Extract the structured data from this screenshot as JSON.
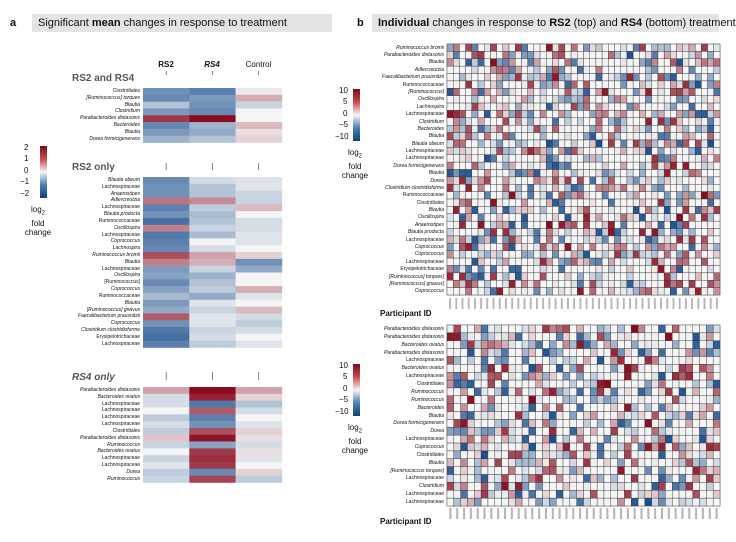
{
  "panel_a": {
    "letter": "a",
    "title_pre": "Significant ",
    "title_bold": "mean",
    "title_post": " changes in response to treatment",
    "columns": [
      "RS2",
      "RS4",
      "Control"
    ],
    "legend": {
      "ticks": [
        "2",
        "1",
        "0",
        "−1",
        "−2"
      ],
      "title_line1": "log",
      "title_sub": "2",
      "title_line2": "fold",
      "title_line3": "change"
    },
    "sections": [
      {
        "title": "RS2 and RS4",
        "rows": [
          {
            "label": "Clostridiales",
            "v": [
              -1.2,
              -1.4,
              0.1
            ]
          },
          {
            "label": "[Ruminococcus] torques",
            "v": [
              -1.3,
              -1.1,
              0.6
            ]
          },
          {
            "label": "Blautia",
            "v": [
              -0.6,
              -1.2,
              -0.4
            ]
          },
          {
            "label": "Clostridium",
            "v": [
              -1.1,
              -1.3,
              0.0
            ]
          },
          {
            "label": "Parabacteroides distasonis",
            "v": [
              1.6,
              2.0,
              0.0
            ]
          },
          {
            "label": "Bacteroides",
            "v": [
              -1.3,
              -0.8,
              0.5
            ]
          },
          {
            "label": "Blautia",
            "v": [
              -1.1,
              -0.9,
              0.2
            ]
          },
          {
            "label": "Dorea formicigenerans",
            "v": [
              -0.8,
              -0.6,
              0.3
            ]
          }
        ]
      },
      {
        "title": "RS2 only",
        "rows": [
          {
            "label": "Blautia obeum",
            "v": [
              -1.3,
              -0.3,
              -0.2
            ]
          },
          {
            "label": "Lachnospiraceae",
            "v": [
              -1.2,
              -0.6,
              -0.2
            ]
          },
          {
            "label": "Anaerostipes",
            "v": [
              -1.2,
              -0.6,
              -0.4
            ]
          },
          {
            "label": "Adlercreutzia",
            "v": [
              1.1,
              0.9,
              -0.4
            ]
          },
          {
            "label": "Lachnospiraceae",
            "v": [
              -1.4,
              -0.5,
              0.5
            ]
          },
          {
            "label": "Blautia producta",
            "v": [
              -1.2,
              -0.7,
              0.0
            ]
          },
          {
            "label": "Ruminococcaceae",
            "v": [
              -1.6,
              -0.6,
              -0.3
            ]
          },
          {
            "label": "Oscillospira",
            "v": [
              1.0,
              -0.4,
              -0.3
            ]
          },
          {
            "label": "Lachnospiraceae",
            "v": [
              -1.5,
              -0.7,
              -0.2
            ]
          },
          {
            "label": "Coprococcus",
            "v": [
              -1.4,
              0.0,
              -0.2
            ]
          },
          {
            "label": "Lachnospira",
            "v": [
              -1.3,
              -0.3,
              0.0
            ]
          },
          {
            "label": "Ruminococcus bromii",
            "v": [
              1.4,
              0.7,
              0.3
            ]
          },
          {
            "label": "Blautia",
            "v": [
              1.0,
              0.6,
              -1.2
            ]
          },
          {
            "label": "Lachnospiraceae",
            "v": [
              -1.1,
              -0.4,
              -0.9
            ]
          },
          {
            "label": "Oscillospira",
            "v": [
              -1.0,
              -0.8,
              0.0
            ]
          },
          {
            "label": "[Ruminococcus]",
            "v": [
              -1.3,
              -0.6,
              0.0
            ]
          },
          {
            "label": "Coprococcus",
            "v": [
              -1.0,
              -0.5,
              0.6
            ]
          },
          {
            "label": "Ruminococcaceae",
            "v": [
              -0.7,
              -0.9,
              -0.2
            ]
          },
          {
            "label": "Blautia",
            "v": [
              -1.1,
              -0.2,
              0.0
            ]
          },
          {
            "label": "[Ruminococcus] gnavus",
            "v": [
              -0.9,
              -0.4,
              0.5
            ]
          },
          {
            "label": "Faecalibacterium prausnitzii",
            "v": [
              1.3,
              -0.2,
              -0.3
            ]
          },
          {
            "label": "Coprococcus",
            "v": [
              -1.2,
              -0.2,
              -0.5
            ]
          },
          {
            "label": "Clostridium clostridioforme",
            "v": [
              -1.5,
              -0.4,
              -0.3
            ]
          },
          {
            "label": "Erysipelotrichaceae",
            "v": [
              -1.6,
              -0.3,
              0.0
            ]
          },
          {
            "label": "Lachnospiraceae",
            "v": [
              -1.4,
              -0.5,
              -0.2
            ]
          }
        ]
      },
      {
        "title": "RS4 only",
        "rows": [
          {
            "label": "Parabacteroides distasonis",
            "v": [
              0.7,
              2.0,
              0.7
            ]
          },
          {
            "label": "Bacteroides ovatus",
            "v": [
              -0.3,
              1.8,
              0.3
            ]
          },
          {
            "label": "Lachnospiraceae",
            "v": [
              -0.3,
              -1.5,
              -0.6
            ]
          },
          {
            "label": "Lachnospiraceae",
            "v": [
              0.0,
              1.3,
              -0.3
            ]
          },
          {
            "label": "Lachnospiraceae",
            "v": [
              -0.5,
              -1.4,
              0.0
            ]
          },
          {
            "label": "Lachnospiraceae",
            "v": [
              -0.3,
              -1.2,
              -0.2
            ]
          },
          {
            "label": "Clostridiales",
            "v": [
              -0.5,
              1.4,
              0.3
            ]
          },
          {
            "label": "Parabacteroides distasonis",
            "v": [
              0.4,
              1.9,
              0.2
            ]
          },
          {
            "label": "Ruminococcus",
            "v": [
              -0.4,
              -1.0,
              -0.3
            ]
          },
          {
            "label": "Bacteroides ovatus",
            "v": [
              0.0,
              1.6,
              0.2
            ]
          },
          {
            "label": "Lachnospiraceae",
            "v": [
              -0.4,
              1.7,
              -0.2
            ]
          },
          {
            "label": "Lachnospiraceae",
            "v": [
              -0.2,
              1.6,
              0.0
            ]
          },
          {
            "label": "Dorea",
            "v": [
              -0.5,
              -1.3,
              0.3
            ]
          },
          {
            "label": "Ruminococcus",
            "v": [
              -0.4,
              1.5,
              -0.5
            ]
          }
        ]
      }
    ]
  },
  "panel_b": {
    "letter": "b",
    "title_bold1": "Individual",
    "title_mid": " changes in response to ",
    "title_bold2": "RS2",
    "title_mid2": " (top) and ",
    "title_bold3": "RS4",
    "title_post": " (bottom) treatment",
    "legend": {
      "ticks": [
        "10",
        "5",
        "0",
        "−5",
        "−10"
      ],
      "title_line1": "log",
      "title_sub": "2",
      "title_line2": "fold",
      "title_line3": "change"
    },
    "participant_label": "Participant ID",
    "n_participants_top": 44,
    "n_participants_bottom": 40,
    "top_rows": [
      "Ruminococcus bromii",
      "Parabacteroides distasonis",
      "Blautia",
      "Adlercreutzia",
      "Faecalibacterium prausnitzii",
      "Ruminococcaceae",
      "[Ruminococcus]",
      "Oscillospira",
      "Lachnospira",
      "Lachnospiraceae",
      "Clostridium",
      "Bacteroides",
      "Blautia",
      "Blautia obeum",
      "Lachnospiraceae",
      "Lachnospiraceae",
      "Dorea formicigenerans",
      "Blautia",
      "Dorea",
      "Clostridium clostridioforme",
      "Ruminococcaceae",
      "Clostridiales",
      "Blautia",
      "Oscillospira",
      "Anaerostipes",
      "Blautia producta",
      "Lachnospiraceae",
      "Coprococcus",
      "Coprococcus",
      "Lachnospiraceae",
      "Erysipelotrichaceae",
      "[Ruminococcus] torques]",
      "[Ruminococcus] gnavus]",
      "Coprococcus"
    ],
    "bottom_rows": [
      "Parabacteroides distasonis",
      "Parabacteroides distasonis",
      "Bacteroides ovatus",
      "Parabacteroides distasonis",
      "Lachnospiraceae",
      "Bacteroides ovatus",
      "Lachnospiraceae",
      "Clostridiales",
      "Ruminococcus",
      "Ruminococcus",
      "Bacteroides",
      "Blautia",
      "Dorea formicigenerans",
      "Dorea",
      "Lachnospiraceae",
      "Coprococcus",
      "Clostridiales",
      "Blautia",
      "[Ruminococcus torques]",
      "Lachnospiraceae",
      "Clostridium",
      "Lachnospiraceae",
      "Lachnospiraceae"
    ]
  },
  "colors": {
    "neg": "#1a4f8f",
    "mid": "#f5f5f5",
    "pos": "#8a0a1e",
    "title_box": "#e4e4e4"
  }
}
